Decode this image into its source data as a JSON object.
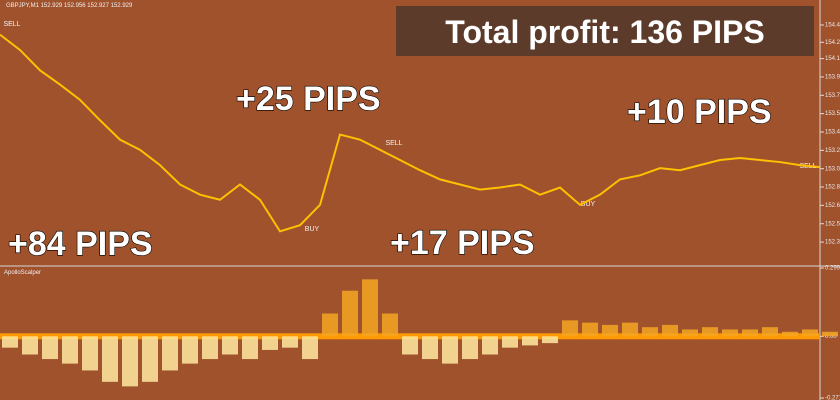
{
  "header": "GBPJPY,M1  152.929 152.956 152.927 152.929",
  "total_profit": "Total profit: 136 PIPS",
  "trade_labels": [
    "+84 PIPS",
    "+25 PIPS",
    "+17 PIPS",
    "+10 PIPS"
  ],
  "signals": [
    "SELL",
    "BUY",
    "SELL",
    "BUY",
    "SELL"
  ],
  "chart_data": [
    {
      "type": "line",
      "color": "#ffc000",
      "values": [
        154.36,
        154.21,
        154.01,
        153.87,
        153.72,
        153.52,
        153.33,
        153.23,
        153.08,
        152.89,
        152.79,
        152.74,
        152.89,
        152.74,
        152.43,
        152.49,
        152.69,
        153.38,
        153.33,
        153.23,
        153.13,
        153.03,
        152.94,
        152.89,
        152.84,
        152.86,
        152.89,
        152.79,
        152.86,
        152.69,
        152.79,
        152.94,
        152.98,
        153.05,
        153.03,
        153.08,
        153.13,
        153.15,
        153.13,
        153.11,
        153.08,
        153.06
      ],
      "ylim": [
        152.1,
        154.7
      ],
      "yticks": [
        154.455,
        154.285,
        154.125,
        153.945,
        153.765,
        153.585,
        153.405,
        153.225,
        153.045,
        152.865,
        152.685,
        152.505,
        152.325
      ]
    },
    {
      "type": "bar",
      "title": "ApolloScalper",
      "colors": [
        "#ffe9a0",
        "#f5a623"
      ],
      "values": [
        -0.05,
        -0.08,
        -0.1,
        -0.12,
        -0.15,
        -0.2,
        -0.22,
        -0.2,
        -0.15,
        -0.12,
        -0.1,
        -0.08,
        -0.1,
        -0.06,
        -0.05,
        -0.1,
        0.1,
        0.2,
        0.25,
        0.1,
        -0.08,
        -0.1,
        -0.12,
        -0.1,
        -0.08,
        -0.05,
        -0.04,
        -0.03,
        0.07,
        0.06,
        0.05,
        0.06,
        0.04,
        0.05,
        0.03,
        0.04,
        0.03,
        0.03,
        0.04,
        0.02,
        0.03,
        0.02
      ],
      "ylim": [
        -0.271,
        0.2999
      ],
      "yticks": [
        {
          "value": 0.2999,
          "label": "0.2999"
        },
        {
          "value": 0,
          "label": "0.00"
        },
        {
          "value": -0.271,
          "label": "-0.271"
        }
      ]
    }
  ]
}
